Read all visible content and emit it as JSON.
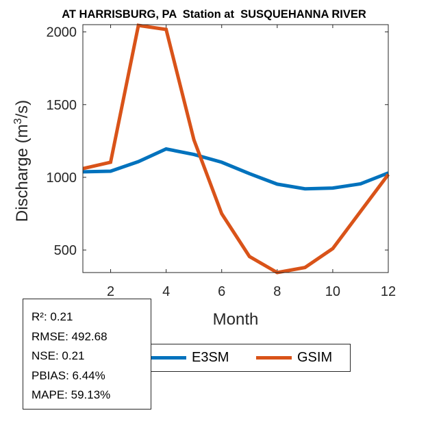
{
  "chart_data": {
    "type": "line",
    "title": "AT HARRISBURG, PA  Station at  SUSQUEHANNA RIVER",
    "xlabel": "Month",
    "ylabel": "Discharge (m³/s)",
    "ylabel_parts": {
      "pre": "Discharge (m",
      "sup": "3",
      "post": "/s)"
    },
    "xlim": [
      1,
      12
    ],
    "ylim": [
      345,
      2050
    ],
    "xticks": [
      2,
      4,
      6,
      8,
      10,
      12
    ],
    "yticks": [
      500,
      1000,
      1500,
      2000
    ],
    "grid": false,
    "legend_position": "bottom",
    "x": [
      1,
      2,
      3,
      4,
      5,
      6,
      7,
      8,
      9,
      10,
      11,
      12
    ],
    "series": [
      {
        "name": "E3SM",
        "color": "#0072BD",
        "values": [
          1038,
          1042,
          1108,
          1195,
          1157,
          1104,
          1025,
          953,
          921,
          926,
          955,
          1030
        ]
      },
      {
        "name": "GSIM",
        "color": "#D95319",
        "values": [
          1060,
          1104,
          2045,
          2017,
          1258,
          750,
          455,
          345,
          380,
          510,
          765,
          1020
        ]
      }
    ]
  },
  "stats": {
    "r2": "R²: 0.21",
    "rmse": "RMSE: 492.68",
    "nse": "NSE: 0.21",
    "pbias": "PBIAS: 6.44%",
    "mape": "MAPE: 59.13%"
  }
}
